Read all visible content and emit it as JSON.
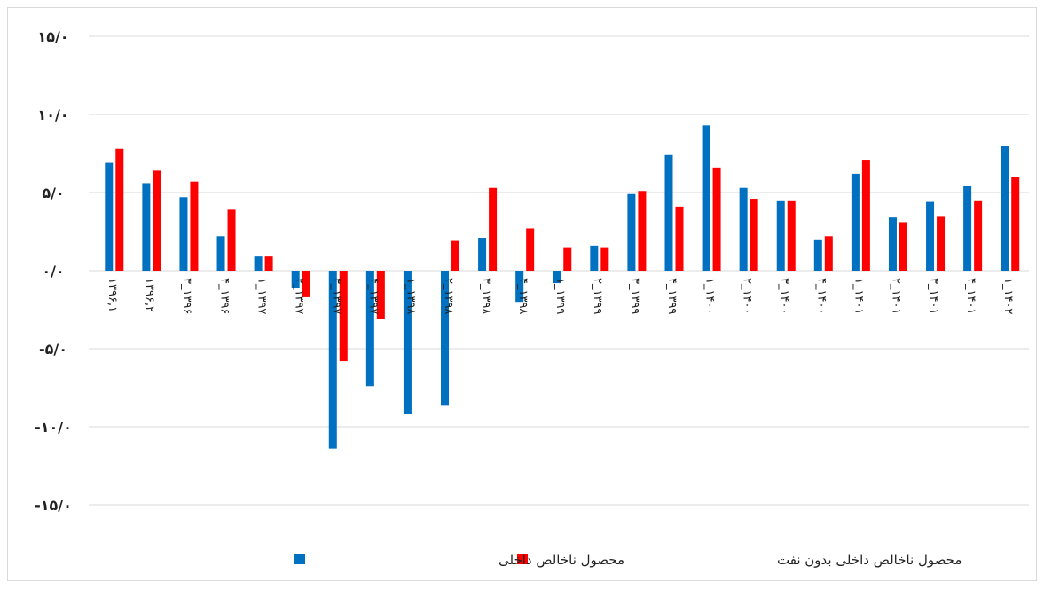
{
  "chart_data": {
    "type": "bar",
    "categories": [
      "۱۳۹۶,۱",
      "۱۳۹۶,۲",
      "۳_۱۳۹۶",
      "۴_۱۳۹۶",
      "۱_۱۳۹۷",
      "۲_۱۳۹۷",
      "۳_۱۳۹۷",
      "۴_۱۳۹۷",
      "۱_۱۳۹۸",
      "۲_۱۳۹۸",
      "۳_۱۳۹۸",
      "۴_۱۳۹۸",
      "۱_۱۳۹۹",
      "۲_۱۳۹۹",
      "۳_۱۳۹۹",
      "۴_۱۳۹۹",
      "۱_۱۴۰۰",
      "۲_۱۴۰۰",
      "۳_۱۴۰۰",
      "۴_۱۴۰۰",
      "۱_۱۴۰۱",
      "۲_۱۴۰۱",
      "۳_۱۴۰۱",
      "۴_۱۴۰۱",
      "۱_۱۴۰۲"
    ],
    "series": [
      {
        "name": "محصول ناخالص داخلی",
        "color": "#0070c0",
        "values": [
          6.9,
          5.6,
          4.7,
          2.2,
          0.9,
          -1.1,
          -11.4,
          -7.4,
          -9.2,
          -8.6,
          2.1,
          -2.0,
          -0.8,
          1.6,
          4.9,
          7.4,
          9.3,
          5.3,
          4.5,
          2.0,
          6.2,
          3.4,
          4.4,
          5.4,
          8.0
        ]
      },
      {
        "name": "محصول ناخالص داخلی بدون نفت",
        "color": "#ff0000",
        "values": [
          7.8,
          6.4,
          5.7,
          3.9,
          0.9,
          -1.7,
          -5.8,
          -3.1,
          0,
          1.9,
          5.3,
          2.7,
          1.5,
          1.5,
          5.1,
          4.1,
          6.6,
          4.6,
          4.5,
          2.2,
          7.1,
          3.1,
          3.5,
          4.5,
          6.0
        ]
      }
    ],
    "ylim": [
      -15,
      15
    ],
    "yticks": [
      {
        "value": -15,
        "label": "-۱۵/۰"
      },
      {
        "value": -10,
        "label": "-۱۰/۰"
      },
      {
        "value": -5,
        "label": "-۵/۰"
      },
      {
        "value": 0,
        "label": "۰/۰"
      },
      {
        "value": 5,
        "label": "۵/۰"
      },
      {
        "value": 10,
        "label": "۱۰/۰"
      },
      {
        "value": 15,
        "label": "۱۵/۰"
      }
    ],
    "grid": true
  }
}
